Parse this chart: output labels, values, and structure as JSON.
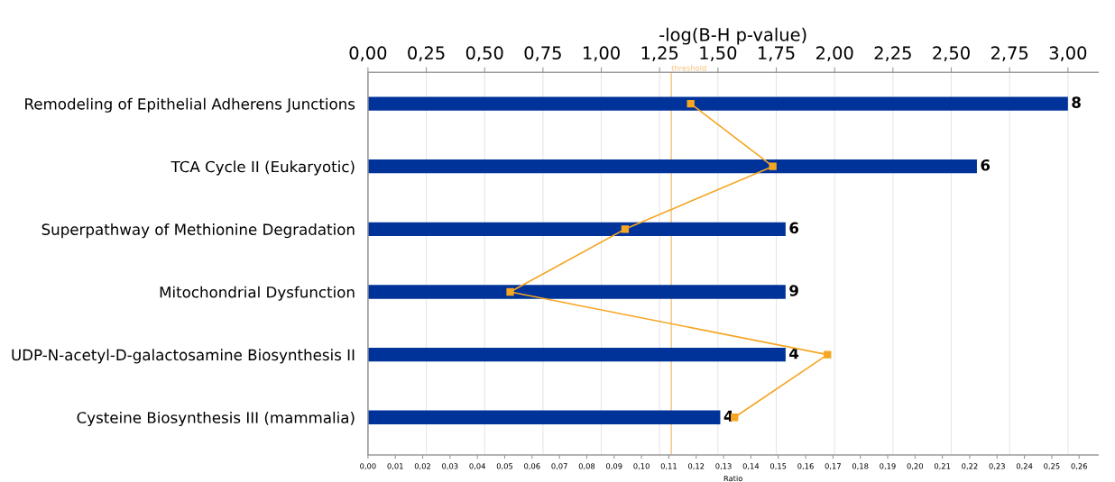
{
  "chart_data": {
    "type": "bar",
    "orientation": "horizontal",
    "categories": [
      "Remodeling of Epithelial Adherens Junctions",
      "TCA Cycle II (Eukaryotic)",
      "Superpathway of Methionine Degradation",
      "Mitochondrial Dysfunction",
      "UDP-N-acetyl-D-galactosamine Biosynthesis II",
      "Cysteine Biosynthesis III (mammalia)"
    ],
    "series": [
      {
        "type": "bar",
        "axis": "x2",
        "color": "#003399",
        "values": [
          3.0,
          2.61,
          1.79,
          1.79,
          1.79,
          1.51
        ]
      },
      {
        "type": "line",
        "color": "#f5a623",
        "marker": "square",
        "values": [
          0.118,
          0.148,
          0.094,
          0.052,
          0.168,
          0.134
        ]
      }
    ],
    "xlabel": "Ratio",
    "x2label": "-log(B-H p-value)",
    "xlim": [
      0,
      0.267
    ],
    "xticks": [
      {
        "value": 0,
        "label": "0,00"
      },
      {
        "value": 0.01,
        "label": "0,01"
      },
      {
        "value": 0.02,
        "label": "0,02"
      },
      {
        "value": 0.03,
        "label": "0,03"
      },
      {
        "value": 0.04,
        "label": "0,04"
      },
      {
        "value": 0.05,
        "label": "0,05"
      },
      {
        "value": 0.06,
        "label": "0,06"
      },
      {
        "value": 0.07,
        "label": "0,07"
      },
      {
        "value": 0.08,
        "label": "0,08"
      },
      {
        "value": 0.09,
        "label": "0,09"
      },
      {
        "value": 0.1,
        "label": "0,10"
      },
      {
        "value": 0.11,
        "label": "0,11"
      },
      {
        "value": 0.12,
        "label": "0,12"
      },
      {
        "value": 0.13,
        "label": "0,13"
      },
      {
        "value": 0.14,
        "label": "0,14"
      },
      {
        "value": 0.15,
        "label": "0,15"
      },
      {
        "value": 0.16,
        "label": "0,16"
      },
      {
        "value": 0.17,
        "label": "0,17"
      },
      {
        "value": 0.18,
        "label": "0,18"
      },
      {
        "value": 0.19,
        "label": "0,19"
      },
      {
        "value": 0.2,
        "label": "0,20"
      },
      {
        "value": 0.21,
        "label": "0,21"
      },
      {
        "value": 0.22,
        "label": "0,22"
      },
      {
        "value": 0.23,
        "label": "0,23"
      },
      {
        "value": 0.24,
        "label": "0,24"
      },
      {
        "value": 0.25,
        "label": "0,25"
      },
      {
        "value": 0.26,
        "label": "0,26"
      }
    ],
    "x2lim": [
      0,
      3.13
    ],
    "x2ticks": [
      {
        "value": 0,
        "label": "0,00"
      },
      {
        "value": 0.25,
        "label": "0,25"
      },
      {
        "value": 0.5,
        "label": "0,50"
      },
      {
        "value": 0.75,
        "label": "0,75"
      },
      {
        "value": 1.0,
        "label": "1,00"
      },
      {
        "value": 1.25,
        "label": "1,25"
      },
      {
        "value": 1.5,
        "label": "1,50"
      },
      {
        "value": 1.75,
        "label": "1,75"
      },
      {
        "value": 2.0,
        "label": "2,00"
      },
      {
        "value": 2.25,
        "label": "2,25"
      },
      {
        "value": 2.5,
        "label": "2,50"
      },
      {
        "value": 2.75,
        "label": "2,75"
      },
      {
        "value": 3.0,
        "label": "3,00"
      }
    ],
    "ref_lines": [
      {
        "axis": "x2",
        "value": 1.3,
        "label": "threshold",
        "color": "#f5c27a"
      }
    ],
    "annotations": [
      "8",
      "6",
      "6",
      "9",
      "4",
      "4"
    ],
    "grid": "x2",
    "legend": false
  }
}
